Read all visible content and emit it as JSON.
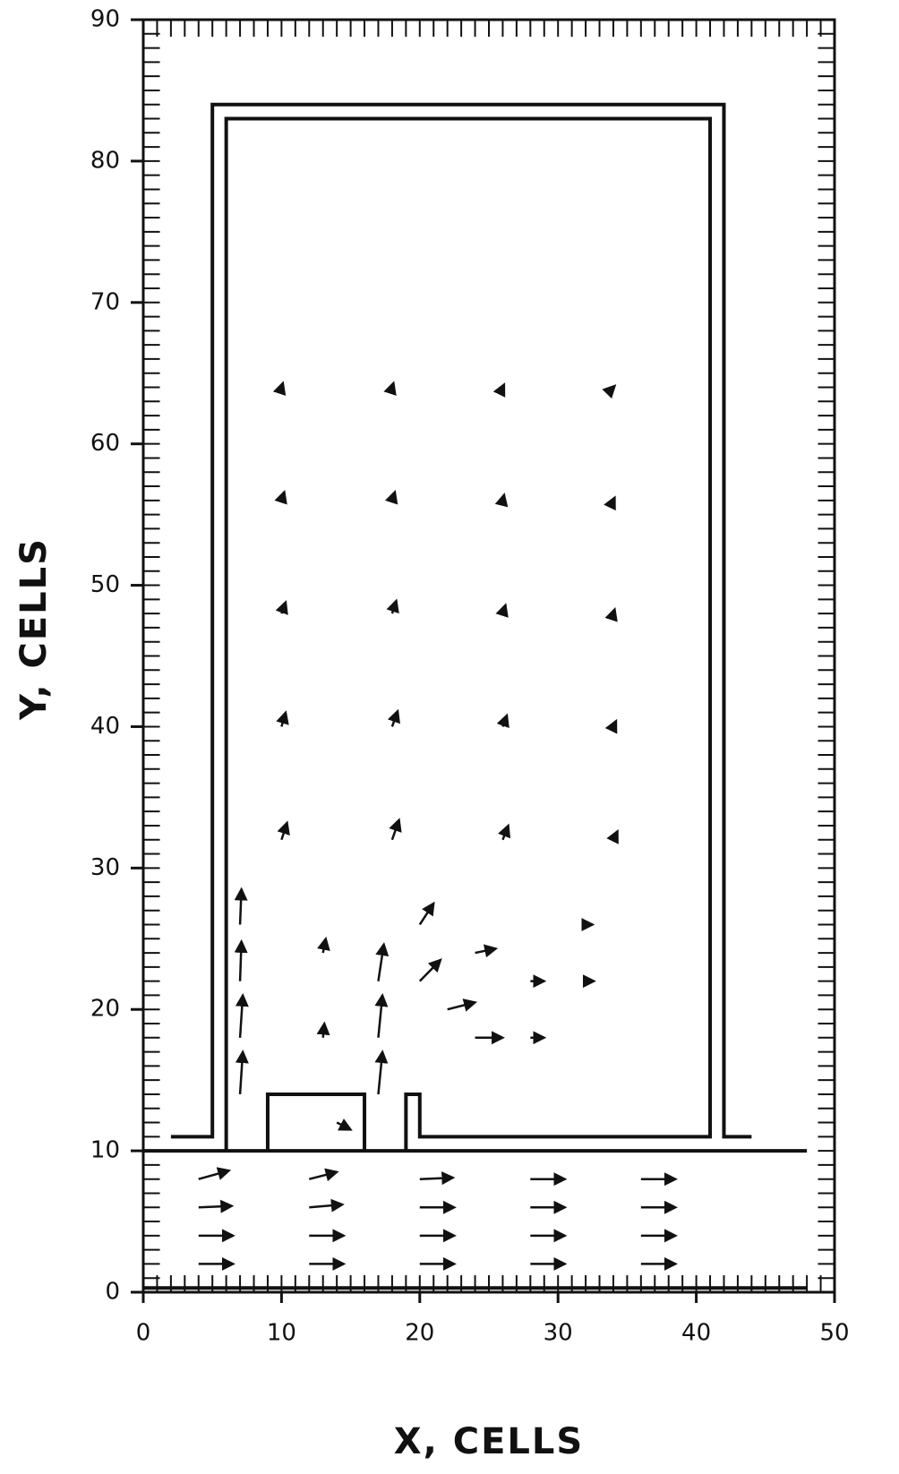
{
  "chart_data": {
    "type": "quiver",
    "x_label": "X, CELLS",
    "y_label": "Y, CELLS",
    "xlim": [
      0,
      50
    ],
    "ylim": [
      0,
      90
    ],
    "xticks": [
      0,
      10,
      20,
      30,
      40,
      50
    ],
    "yticks": [
      0,
      10,
      20,
      30,
      40,
      50,
      60,
      70,
      80,
      90
    ],
    "color": "#111111",
    "x": [
      4,
      12,
      20,
      28,
      36,
      4,
      12,
      20,
      28,
      36,
      4,
      12,
      20,
      28,
      36,
      4,
      12,
      20,
      28,
      36,
      7,
      7,
      7,
      7,
      17,
      17,
      17,
      20,
      22,
      24,
      20,
      24,
      28,
      28,
      32,
      32,
      10,
      18,
      26,
      34,
      10,
      18,
      26,
      34,
      10,
      18,
      26,
      34,
      10,
      18,
      26,
      34,
      10,
      18,
      26,
      34,
      13,
      13,
      14
    ],
    "y": [
      2,
      2,
      2,
      2,
      2,
      4,
      4,
      4,
      4,
      4,
      6,
      6,
      6,
      6,
      6,
      8,
      8,
      8,
      8,
      8,
      14,
      18,
      22,
      26,
      14,
      18,
      22,
      22,
      20,
      18,
      26,
      24,
      22,
      18,
      22,
      26,
      32,
      32,
      32,
      32,
      40,
      40,
      40,
      40,
      48,
      48,
      48,
      48,
      56,
      56,
      56,
      56,
      64,
      64,
      64,
      64,
      18,
      24,
      12
    ],
    "u": [
      2.5,
      2.5,
      2.5,
      2.5,
      2.5,
      2.5,
      2.5,
      2.5,
      2.5,
      2.5,
      2.4,
      2.4,
      2.5,
      2.5,
      2.5,
      2.2,
      2.0,
      2.4,
      2.5,
      2.5,
      0.2,
      0.2,
      0.1,
      0.1,
      0.3,
      0.3,
      0.4,
      1.5,
      2.0,
      2.0,
      1.0,
      1.5,
      1.0,
      1.0,
      0.6,
      0.5,
      0.4,
      0.5,
      0.4,
      0.3,
      0.3,
      0.4,
      0.3,
      0.2,
      0.3,
      0.3,
      0.2,
      0.1,
      0.2,
      0.2,
      0.1,
      0.1,
      0.1,
      0.1,
      0.1,
      0.1,
      0.1,
      0.2,
      1.0
    ],
    "v": [
      0,
      0,
      0,
      0,
      0,
      0,
      0,
      0,
      0,
      0,
      0.1,
      0.2,
      0,
      0,
      0,
      0.6,
      0.5,
      0.1,
      0,
      0,
      3.0,
      3.0,
      2.8,
      2.5,
      3.0,
      3.0,
      2.6,
      1.5,
      0.5,
      0,
      1.5,
      0.3,
      0,
      0,
      0,
      0,
      1.2,
      1.4,
      1.0,
      0.6,
      1.0,
      1.1,
      0.8,
      0.4,
      0.8,
      0.9,
      0.6,
      0.3,
      0.6,
      0.6,
      0.4,
      0.2,
      0.3,
      0.3,
      0.2,
      0.1,
      1.0,
      1.0,
      -0.5
    ]
  }
}
